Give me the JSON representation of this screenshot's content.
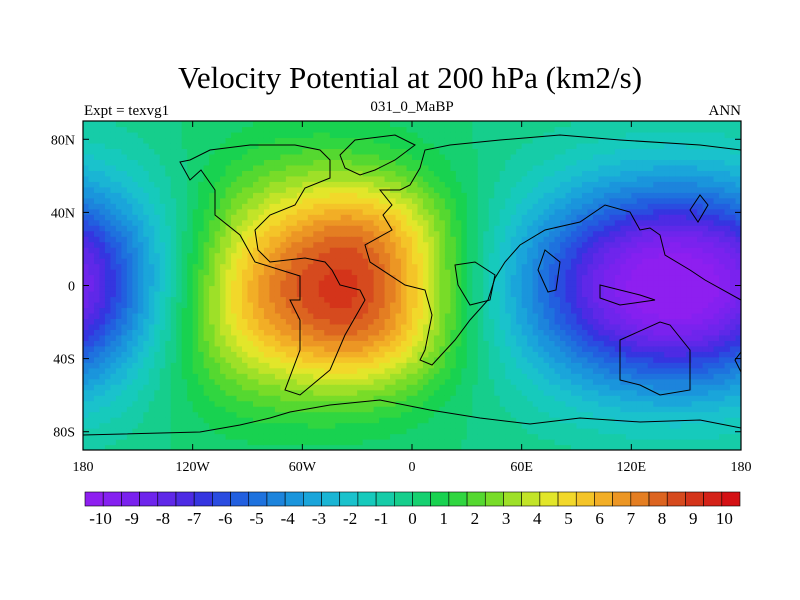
{
  "chart_data": {
    "type": "heatmap",
    "title": "Velocity Potential at 200 hPa (km2/s)",
    "left_string": "Expt = texvg1",
    "center_string": "031_0_MaBP",
    "right_string": "ANN",
    "x_ticks": [
      {
        "lon": -180,
        "label": "180"
      },
      {
        "lon": -120,
        "label": "120W"
      },
      {
        "lon": -60,
        "label": "60W"
      },
      {
        "lon": 0,
        "label": "0"
      },
      {
        "lon": 60,
        "label": "60E"
      },
      {
        "lon": 120,
        "label": "120E"
      },
      {
        "lon": 180,
        "label": "180"
      }
    ],
    "y_ticks": [
      {
        "lat": 80,
        "label": "80N"
      },
      {
        "lat": 40,
        "label": "40N"
      },
      {
        "lat": 0,
        "label": "0"
      },
      {
        "lat": -40,
        "label": "40S"
      },
      {
        "lat": -80,
        "label": "80S"
      }
    ],
    "xlim": [
      -180,
      180
    ],
    "ylim": [
      -90,
      90
    ],
    "colorbar": {
      "min": -10.5,
      "max": 10.5,
      "labels": [
        "-10",
        "-9",
        "-8",
        "-7",
        "-6",
        "-5",
        "-4",
        "-3",
        "-2",
        "-1",
        "0",
        "1",
        "2",
        "3",
        "4",
        "5",
        "6",
        "7",
        "8",
        "9",
        "10"
      ],
      "colors": [
        "#8e1ff0",
        "#8520f0",
        "#7a22ee",
        "#6e25ec",
        "#5f28e8",
        "#4d2be4",
        "#3535e0",
        "#2a4ce0",
        "#225fdf",
        "#1e72de",
        "#1d84dc",
        "#1a95dc",
        "#1aa5da",
        "#1ab5d4",
        "#1ac2cc",
        "#16cabc",
        "#16cca8",
        "#16ce8c",
        "#16d070",
        "#18d250",
        "#30d640",
        "#55d830",
        "#78dc28",
        "#9ee028",
        "#c2e428",
        "#e2e62a",
        "#f2d82a",
        "#f4c428",
        "#f2ae26",
        "#ec9624",
        "#e47e22",
        "#dc6420",
        "#d64a1e",
        "#d4341a",
        "#d42218",
        "#d41014"
      ]
    },
    "centers": [
      {
        "lon": -55,
        "lat": 15,
        "amp": 5.4,
        "sx": 48,
        "sy": 38
      },
      {
        "lon": -20,
        "lat": -22,
        "amp": 4.2,
        "sx": 34,
        "sy": 28
      },
      {
        "lon": -95,
        "lat": -20,
        "amp": 3.2,
        "sx": 42,
        "sy": 35
      },
      {
        "lon": -15,
        "lat": 30,
        "amp": 2.2,
        "sx": 30,
        "sy": 22
      },
      {
        "lon": 145,
        "lat": 0,
        "amp": -11.0,
        "sx": 60,
        "sy": 40
      }
    ]
  }
}
